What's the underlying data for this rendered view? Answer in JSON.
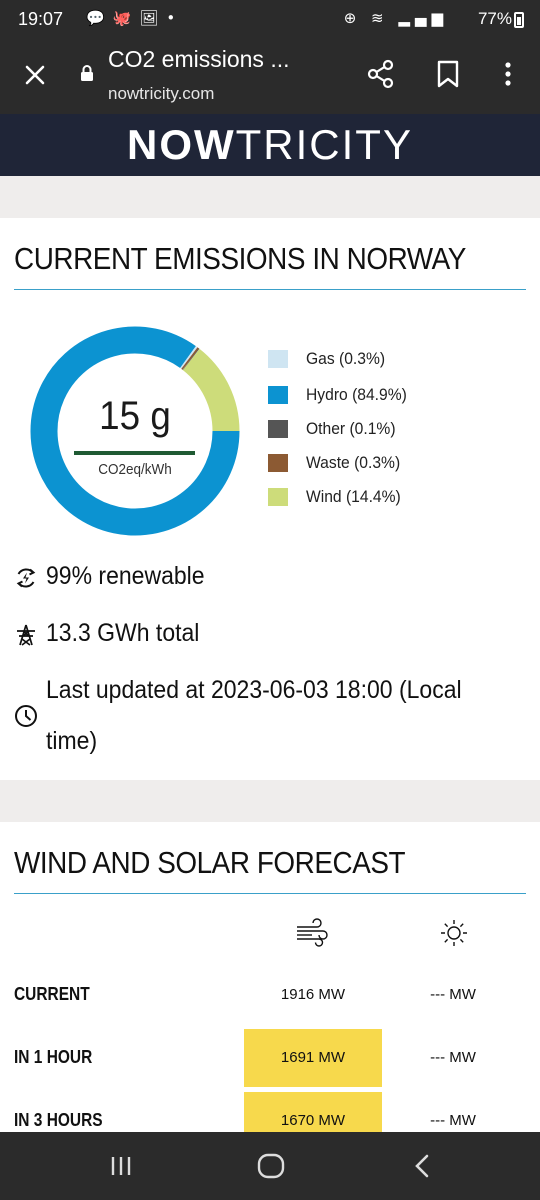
{
  "status_bar": {
    "time": "19:07",
    "battery": "77%"
  },
  "browser": {
    "title": "CO2 emissions ...",
    "url": "nowtricity.com"
  },
  "site": {
    "logo_bold": "NOW",
    "logo_rest": "TRICITY"
  },
  "current": {
    "heading": "CURRENT EMISSIONS IN NORWAY",
    "value": "15 g",
    "unit": "CO2eq/kWh",
    "chart_data": {
      "type": "pie",
      "categories": [
        "Gas",
        "Hydro",
        "Other",
        "Waste",
        "Wind"
      ],
      "values": [
        0.3,
        84.9,
        0.1,
        0.3,
        14.4
      ],
      "colors": [
        "#cfe5f2",
        "#0c93d1",
        "#555555",
        "#8c5a33",
        "#cddc7a"
      ]
    },
    "legend": [
      {
        "label": "Gas (0.3%)",
        "color": "#cfe5f2"
      },
      {
        "label": "Hydro (84.9%)",
        "color": "#0c93d1"
      },
      {
        "label": "Other (0.1%)",
        "color": "#555555"
      },
      {
        "label": "Waste (0.3%)",
        "color": "#8c5a33"
      },
      {
        "label": "Wind (14.4%)",
        "color": "#cddc7a"
      }
    ],
    "renewable": "99% renewable",
    "total": "13.3 GWh total",
    "updated_line1": "Last updated at 2023-06-03 18:00 (Local",
    "updated_line2": "time)"
  },
  "forecast": {
    "heading": "WIND AND SOLAR FORECAST",
    "icons": {
      "wind": "wind-icon",
      "solar": "sun-icon"
    },
    "rows": [
      {
        "label": "CURRENT",
        "wind": "1916 MW",
        "solar": "--- MW",
        "highlight": false
      },
      {
        "label": "IN 1 HOUR",
        "wind": "1691 MW",
        "solar": "--- MW",
        "highlight": true
      },
      {
        "label": "IN 3 HOURS",
        "wind": "1670 MW",
        "solar": "--- MW",
        "highlight": true
      }
    ]
  }
}
